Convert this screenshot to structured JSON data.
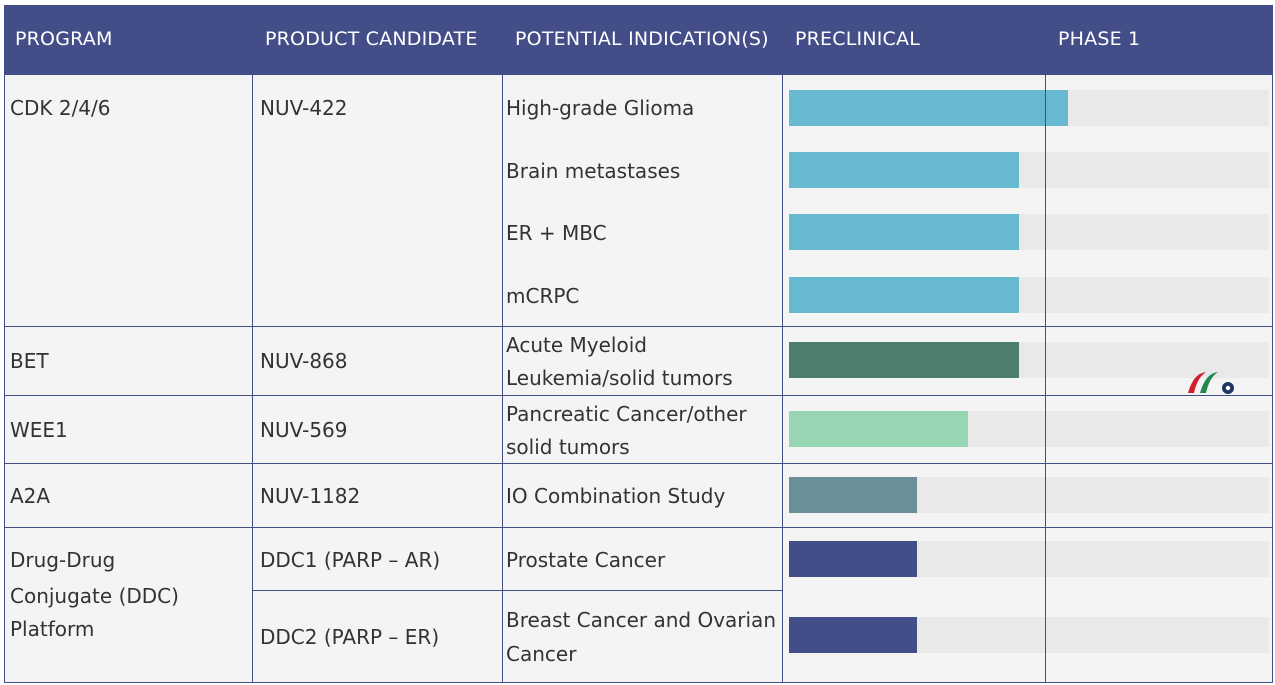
{
  "header": {
    "program": "PROGRAM",
    "candidate": "PRODUCT CANDIDATE",
    "indication": "POTENTIAL INDICATION(S)",
    "preclinical": "PRECLINICAL",
    "phase1": "PHASE 1"
  },
  "rows": [
    {
      "program": "CDK 2/4/6",
      "candidate": "NUV-422",
      "indications": [
        "High-grade Glioma",
        "Brain metastases",
        "ER + MBC",
        "mCRPC"
      ]
    },
    {
      "program": "BET",
      "candidate": "NUV-868",
      "indications": [
        [
          "Acute Myeloid",
          "Leukemia/solid tumors"
        ]
      ]
    },
    {
      "program": "WEE1",
      "candidate": "NUV-569",
      "indications": [
        [
          "Pancreatic Cancer/other",
          "solid tumors"
        ]
      ]
    },
    {
      "program": "A2A",
      "candidate": "NUV-1182",
      "indications": [
        "IO Combination Study"
      ]
    },
    {
      "program": [
        "Drug-Drug",
        "Conjugate (DDC)",
        "Platform"
      ],
      "candidates": [
        "DDC1 (PARP – AR)",
        "DDC2 (PARP – ER)"
      ],
      "indications": [
        "Prostate Cancer",
        [
          "Breast Cancer and Ovarian",
          "Cancer"
        ]
      ]
    }
  ],
  "chart_data": {
    "type": "bar",
    "orientation": "horizontal",
    "categories": [
      "High-grade Glioma",
      "Brain metastases",
      "ER + MBC",
      "mCRPC",
      "Acute Myeloid Leukemia/solid tumors",
      "Pancreatic Cancer/other solid tumors",
      "IO Combination Study",
      "Prostate Cancer",
      "Breast Cancer and Ovarian Cancer"
    ],
    "phases": [
      "PRECLINICAL",
      "PHASE 1"
    ],
    "values": [
      1.09,
      0.9,
      0.9,
      0.9,
      0.9,
      0.7,
      0.5,
      0.5,
      0.5
    ],
    "value_unit": "fraction of PRECLINICAL column width (1.0 = start of PHASE 1)",
    "xlim": [
      0,
      1.87
    ],
    "colors": [
      "#67b9cf",
      "#67b9cf",
      "#67b9cf",
      "#67b9cf",
      "#4c7f6d",
      "#98d5b2",
      "#6a8f97",
      "#434e89",
      "#434e89"
    ],
    "track_color": "#e9e9e9"
  },
  "colors": {
    "header_bg": "#434e89",
    "header_text": "#ffffff",
    "grid_line": "#434e89",
    "row_bg": "#f4f4f4",
    "logo_red": "#d11f2c",
    "logo_green": "#1f8a4c",
    "logo_navy": "#1e3764"
  },
  "logo": {
    "icon": "stock-exchange-logo-icon"
  }
}
